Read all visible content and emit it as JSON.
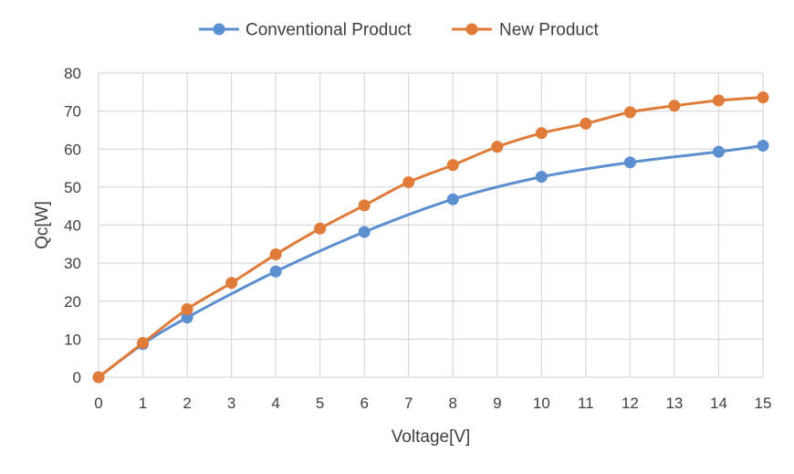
{
  "chart_data": {
    "type": "line",
    "title": "",
    "xlabel": "Voltage[V]",
    "ylabel": "Qc[W]",
    "xlim": [
      0,
      15
    ],
    "ylim": [
      0,
      80
    ],
    "x_ticks": [
      "0",
      "1",
      "2",
      "3",
      "4",
      "5",
      "6",
      "7",
      "8",
      "9",
      "10",
      "11",
      "12",
      "13",
      "14",
      "15"
    ],
    "y_ticks": [
      "0",
      "10",
      "20",
      "30",
      "40",
      "50",
      "60",
      "70",
      "80"
    ],
    "grid": true,
    "legend_position": "top",
    "series": [
      {
        "name": "Conventional Product",
        "color": "#5B8FD0",
        "x": [
          0,
          1,
          2,
          4,
          6,
          8,
          10,
          12,
          14,
          15
        ],
        "y": [
          0,
          8.7,
          15.7,
          27.8,
          38.2,
          46.8,
          52.7,
          56.5,
          59.3,
          60.9
        ]
      },
      {
        "name": "New Product",
        "color": "#E07B39",
        "x": [
          0,
          1,
          2,
          3,
          4,
          5,
          6,
          7,
          8,
          9,
          10,
          11,
          12,
          13,
          14,
          15
        ],
        "y": [
          0,
          9.0,
          17.9,
          24.8,
          32.3,
          39.1,
          45.2,
          51.3,
          55.8,
          60.6,
          64.2,
          66.7,
          69.7,
          71.4,
          72.8,
          73.6
        ]
      }
    ]
  }
}
